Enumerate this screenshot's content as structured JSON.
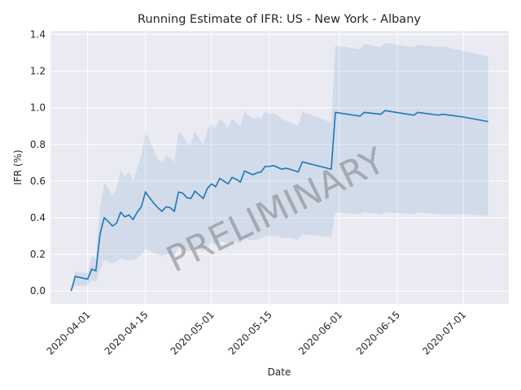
{
  "chart_data": {
    "type": "line",
    "title": "Running Estimate of IFR: US - New York - Albany",
    "x_label": "Date",
    "y_label": "IFR (%)",
    "annotation": "PRELIMINARY",
    "color": "#1f77b4",
    "band_color": "#1f77b4",
    "grid": true,
    "x": [
      "2020-03-28",
      "2020-03-29",
      "2020-03-30",
      "2020-03-31",
      "2020-04-01",
      "2020-04-02",
      "2020-04-03",
      "2020-04-04",
      "2020-04-05",
      "2020-04-06",
      "2020-04-07",
      "2020-04-08",
      "2020-04-09",
      "2020-04-10",
      "2020-04-11",
      "2020-04-12",
      "2020-04-13",
      "2020-04-14",
      "2020-04-15",
      "2020-04-16",
      "2020-04-17",
      "2020-04-18",
      "2020-04-19",
      "2020-04-20",
      "2020-04-21",
      "2020-04-22",
      "2020-04-23",
      "2020-04-24",
      "2020-04-25",
      "2020-04-26",
      "2020-04-27",
      "2020-04-28",
      "2020-04-29",
      "2020-04-30",
      "2020-05-01",
      "2020-05-02",
      "2020-05-03",
      "2020-05-04",
      "2020-05-05",
      "2020-05-06",
      "2020-05-07",
      "2020-05-08",
      "2020-05-09",
      "2020-05-10",
      "2020-05-11",
      "2020-05-12",
      "2020-05-13",
      "2020-05-14",
      "2020-05-15",
      "2020-05-16",
      "2020-05-17",
      "2020-05-18",
      "2020-05-19",
      "2020-05-20",
      "2020-05-22",
      "2020-05-23",
      "2020-05-30",
      "2020-05-31",
      "2020-06-06",
      "2020-06-07",
      "2020-06-11",
      "2020-06-12",
      "2020-06-19",
      "2020-06-20",
      "2020-06-25",
      "2020-06-26",
      "2020-07-01",
      "2020-07-07"
    ],
    "values": [
      0.0,
      0.08,
      0.075,
      0.07,
      0.065,
      0.12,
      0.11,
      0.31,
      0.4,
      0.38,
      0.355,
      0.37,
      0.43,
      0.405,
      0.415,
      0.39,
      0.43,
      0.46,
      0.54,
      0.51,
      0.48,
      0.455,
      0.435,
      0.46,
      0.455,
      0.435,
      0.54,
      0.535,
      0.51,
      0.505,
      0.545,
      0.525,
      0.505,
      0.56,
      0.585,
      0.57,
      0.615,
      0.6,
      0.585,
      0.62,
      0.61,
      0.595,
      0.655,
      0.645,
      0.635,
      0.645,
      0.65,
      0.68,
      0.68,
      0.685,
      0.675,
      0.665,
      0.67,
      0.665,
      0.65,
      0.705,
      0.665,
      0.975,
      0.955,
      0.975,
      0.965,
      0.985,
      0.96,
      0.975,
      0.96,
      0.965,
      0.95,
      0.925
    ],
    "lower": [
      0.0,
      0.03,
      0.03,
      0.03,
      0.03,
      0.06,
      0.05,
      0.12,
      0.17,
      0.16,
      0.15,
      0.16,
      0.18,
      0.17,
      0.17,
      0.17,
      0.18,
      0.2,
      0.23,
      0.22,
      0.21,
      0.2,
      0.19,
      0.2,
      0.2,
      0.19,
      0.24,
      0.23,
      0.22,
      0.22,
      0.24,
      0.23,
      0.22,
      0.25,
      0.26,
      0.25,
      0.27,
      0.27,
      0.26,
      0.27,
      0.27,
      0.26,
      0.29,
      0.28,
      0.28,
      0.28,
      0.29,
      0.3,
      0.3,
      0.3,
      0.3,
      0.29,
      0.29,
      0.29,
      0.28,
      0.31,
      0.295,
      0.43,
      0.42,
      0.43,
      0.42,
      0.43,
      0.42,
      0.43,
      0.42,
      0.42,
      0.42,
      0.41
    ],
    "upper": [
      0.0,
      0.11,
      0.1,
      0.1,
      0.1,
      0.19,
      0.18,
      0.45,
      0.59,
      0.56,
      0.52,
      0.56,
      0.66,
      0.62,
      0.65,
      0.6,
      0.67,
      0.74,
      0.87,
      0.82,
      0.77,
      0.72,
      0.7,
      0.74,
      0.73,
      0.7,
      0.87,
      0.85,
      0.81,
      0.8,
      0.87,
      0.83,
      0.8,
      0.88,
      0.91,
      0.89,
      0.94,
      0.92,
      0.89,
      0.94,
      0.92,
      0.9,
      0.98,
      0.96,
      0.94,
      0.95,
      0.94,
      0.98,
      0.97,
      0.97,
      0.96,
      0.94,
      0.93,
      0.92,
      0.9,
      0.98,
      0.92,
      1.34,
      1.32,
      1.35,
      1.33,
      1.355,
      1.33,
      1.345,
      1.33,
      1.335,
      1.31,
      1.28
    ],
    "xlim": [
      "2020-03-23",
      "2020-07-12"
    ],
    "xticks": [
      "2020-04-01",
      "2020-04-15",
      "2020-05-01",
      "2020-05-15",
      "2020-06-01",
      "2020-06-15",
      "2020-07-01"
    ],
    "ylim": [
      -0.07,
      1.42
    ],
    "yticks": [
      {
        "value": 0,
        "label": "0.0"
      },
      {
        "value": 0.2,
        "label": "0.2"
      },
      {
        "value": 0.4,
        "label": "0.4"
      },
      {
        "value": 0.6,
        "label": "0.6"
      },
      {
        "value": 0.8,
        "label": "0.8"
      },
      {
        "value": 1,
        "label": "1.0"
      },
      {
        "value": 1.2,
        "label": "1.2"
      },
      {
        "value": 1.4,
        "label": "1.4"
      }
    ]
  }
}
